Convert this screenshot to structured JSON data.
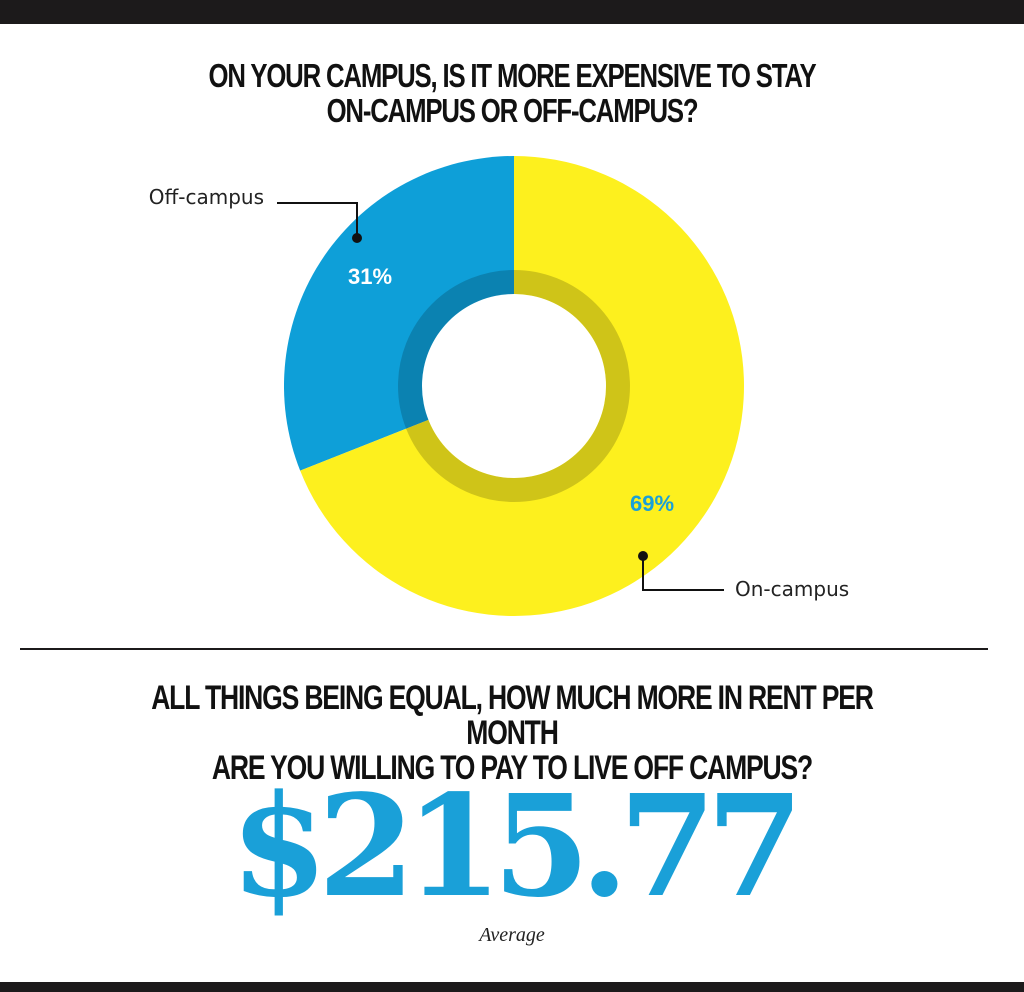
{
  "question1": {
    "line1": "ON YOUR CAMPUS, IS IT MORE EXPENSIVE TO STAY",
    "line2": "ON-CAMPUS OR OFF-CAMPUS?"
  },
  "chart_data": {
    "type": "pie",
    "style": "donut",
    "categories": [
      "Off-campus",
      "On-campus"
    ],
    "values": [
      31,
      69
    ],
    "value_labels": [
      "31%",
      "69%"
    ],
    "colors": [
      "#0e9fd8",
      "#fdf01e"
    ],
    "legend": "callouts"
  },
  "question2": {
    "line1": "ALL THINGS BEING EQUAL, HOW MUCH MORE IN RENT PER MONTH",
    "line2": "ARE YOU WILLING TO PAY TO LIVE OFF CAMPUS?"
  },
  "rent_stat": {
    "value": "$215.77",
    "caption": "Average"
  },
  "colors": {
    "frame": "#1c1a1b",
    "accent_blue": "#1aa0d8",
    "accent_yellow": "#fdf01e"
  }
}
